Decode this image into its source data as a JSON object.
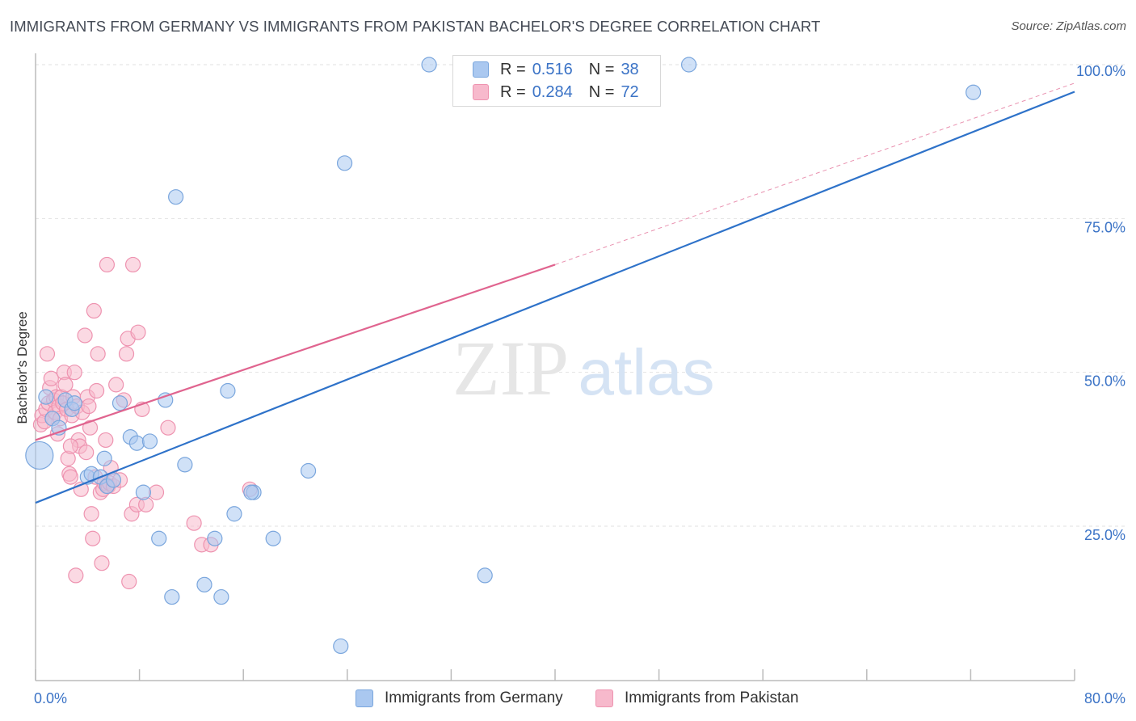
{
  "title": "IMMIGRANTS FROM GERMANY VS IMMIGRANTS FROM PAKISTAN BACHELOR'S DEGREE CORRELATION CHART",
  "source": "Source: ZipAtlas.com",
  "watermark": {
    "zip": "ZIP",
    "atlas": "atlas"
  },
  "legend": {
    "germany": {
      "r_label": "R =",
      "r_value": "0.516",
      "n_label": "N =",
      "n_value": "38"
    },
    "pakistan": {
      "r_label": "R =",
      "r_value": "0.284",
      "n_label": "N =",
      "n_value": "72"
    }
  },
  "colors": {
    "germany_fill": "#aac8f0",
    "germany_stroke": "#7aa6dd",
    "germany_line": "#2e72c9",
    "pakistan_fill": "#f7b9cc",
    "pakistan_stroke": "#ee93b0",
    "pakistan_line": "#e0648f",
    "tick_label": "#3b73c6",
    "grid": "#e2e2e2"
  },
  "chart_data": {
    "type": "scatter",
    "title": "IMMIGRANTS FROM GERMANY VS IMMIGRANTS FROM PAKISTAN BACHELOR'S DEGREE CORRELATION CHART",
    "xlabel": "",
    "ylabel": "Bachelor's Degree",
    "xlim": [
      0,
      80
    ],
    "ylim": [
      0,
      102
    ],
    "x_tick_labels": [
      "0.0%",
      "80.0%"
    ],
    "y_ticks": [
      25,
      50,
      75,
      100
    ],
    "y_tick_labels": [
      "25.0%",
      "50.0%",
      "75.0%",
      "100.0%"
    ],
    "grid": true,
    "legend_position": "top-center",
    "series": [
      {
        "name": "Immigrants from Germany",
        "trend": {
          "x": [
            0,
            80
          ],
          "y": [
            28.8,
            95.6
          ],
          "dashed_to": null
        },
        "points": [
          [
            0.3,
            36.5,
            "large"
          ],
          [
            0.8,
            46
          ],
          [
            1.3,
            42.5
          ],
          [
            1.8,
            41
          ],
          [
            2.3,
            45.5
          ],
          [
            2.8,
            44
          ],
          [
            3.0,
            45
          ],
          [
            4.0,
            33
          ],
          [
            4.3,
            33.5
          ],
          [
            5.0,
            33
          ],
          [
            5.5,
            31.5
          ],
          [
            5.3,
            36
          ],
          [
            6.0,
            32.5
          ],
          [
            6.5,
            45
          ],
          [
            7.3,
            39.5
          ],
          [
            7.8,
            38.5
          ],
          [
            8.3,
            30.5
          ],
          [
            8.8,
            38.8
          ],
          [
            9.5,
            23
          ],
          [
            10.0,
            45.5
          ],
          [
            10.5,
            13.5
          ],
          [
            10.8,
            78.5
          ],
          [
            11.5,
            35
          ],
          [
            13.0,
            15.5
          ],
          [
            13.8,
            23
          ],
          [
            14.3,
            13.5
          ],
          [
            15.3,
            27
          ],
          [
            14.8,
            47
          ],
          [
            16.8,
            30.5
          ],
          [
            16.6,
            30.5
          ],
          [
            18.3,
            23
          ],
          [
            21.0,
            34
          ],
          [
            23.5,
            5.5
          ],
          [
            23.8,
            84
          ],
          [
            30.3,
            100
          ],
          [
            34.6,
            17
          ],
          [
            50.3,
            100
          ],
          [
            72.2,
            95.5
          ]
        ]
      },
      {
        "name": "Immigrants from Pakistan",
        "trend": {
          "x": [
            0,
            40
          ],
          "y": [
            39,
            67.5
          ],
          "dashed_to": [
            80,
            97
          ]
        },
        "points": [
          [
            0.4,
            41.5
          ],
          [
            0.5,
            43
          ],
          [
            0.7,
            42
          ],
          [
            0.8,
            44
          ],
          [
            0.9,
            53
          ],
          [
            1.0,
            45
          ],
          [
            1.1,
            47.5
          ],
          [
            1.2,
            49
          ],
          [
            1.3,
            42.5
          ],
          [
            1.4,
            45.5
          ],
          [
            1.5,
            43.5
          ],
          [
            1.6,
            46
          ],
          [
            1.8,
            44.5
          ],
          [
            1.9,
            42.5
          ],
          [
            2.0,
            46
          ],
          [
            2.1,
            45
          ],
          [
            2.2,
            50
          ],
          [
            2.3,
            48
          ],
          [
            2.4,
            44
          ],
          [
            2.5,
            36
          ],
          [
            2.6,
            33.5
          ],
          [
            2.7,
            33
          ],
          [
            2.8,
            43
          ],
          [
            2.9,
            46
          ],
          [
            3.0,
            50
          ],
          [
            3.1,
            17
          ],
          [
            3.2,
            44.5
          ],
          [
            3.3,
            39
          ],
          [
            3.4,
            38
          ],
          [
            3.5,
            31
          ],
          [
            3.6,
            43.5
          ],
          [
            3.8,
            56
          ],
          [
            3.9,
            37
          ],
          [
            4.0,
            46
          ],
          [
            4.1,
            44.5
          ],
          [
            4.2,
            41
          ],
          [
            4.3,
            27
          ],
          [
            4.4,
            23
          ],
          [
            4.5,
            60
          ],
          [
            4.6,
            33
          ],
          [
            4.7,
            47
          ],
          [
            4.8,
            53
          ],
          [
            5.0,
            30.5
          ],
          [
            5.1,
            19
          ],
          [
            5.2,
            31
          ],
          [
            5.3,
            32
          ],
          [
            5.4,
            39
          ],
          [
            5.5,
            67.5
          ],
          [
            5.6,
            31.5
          ],
          [
            5.7,
            32
          ],
          [
            5.8,
            34.5
          ],
          [
            6.0,
            31.5
          ],
          [
            6.2,
            48
          ],
          [
            6.5,
            32.5
          ],
          [
            6.8,
            45.5
          ],
          [
            7.0,
            53
          ],
          [
            7.1,
            55.5
          ],
          [
            7.2,
            16
          ],
          [
            7.4,
            27
          ],
          [
            7.5,
            67.5
          ],
          [
            7.8,
            28.5
          ],
          [
            7.9,
            56.5
          ],
          [
            8.5,
            28.5
          ],
          [
            9.3,
            30.5
          ],
          [
            10.2,
            41
          ],
          [
            12.2,
            25.5
          ],
          [
            12.8,
            22
          ],
          [
            13.5,
            22
          ],
          [
            16.5,
            31
          ],
          [
            8.2,
            44
          ],
          [
            2.7,
            38
          ],
          [
            1.7,
            40
          ]
        ]
      }
    ]
  },
  "bottom_legend": {
    "germany": "Immigrants from Germany",
    "pakistan": "Immigrants from Pakistan"
  }
}
